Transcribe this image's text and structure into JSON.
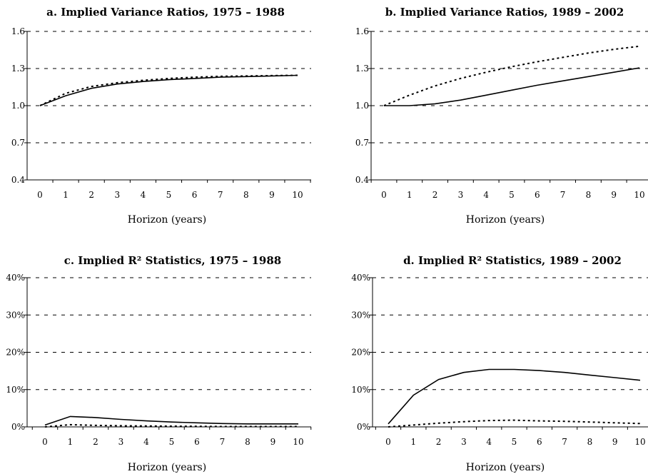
{
  "chart_data": [
    {
      "type": "line",
      "title": "a. Implied Variance Ratios, 1975 – 1988",
      "xlabel": "Horizon (years)",
      "ylabel": "",
      "x": [
        0,
        1,
        2,
        3,
        4,
        5,
        6,
        7,
        8,
        9,
        10
      ],
      "x_tick_labels": [
        "0",
        "1",
        "2",
        "3",
        "4",
        "5",
        "6",
        "7",
        "8",
        "9",
        "10"
      ],
      "xlim": [
        0,
        10
      ],
      "ylim": [
        0.4,
        1.6
      ],
      "y_ticks": [
        0.4,
        0.7,
        1.0,
        1.3,
        1.6
      ],
      "y_tick_labels": [
        "0.4",
        "0.7",
        "1.0",
        "1.3",
        "1.6"
      ],
      "grid": true,
      "series": [
        {
          "style": "solid",
          "values": [
            1.0,
            1.08,
            1.14,
            1.175,
            1.195,
            1.21,
            1.22,
            1.23,
            1.235,
            1.24,
            1.245
          ]
        },
        {
          "style": "dotted",
          "values": [
            1.0,
            1.1,
            1.155,
            1.185,
            1.205,
            1.22,
            1.23,
            1.237,
            1.24,
            1.243,
            1.245
          ]
        }
      ]
    },
    {
      "type": "line",
      "title": "b. Implied Variance Ratios, 1989 – 2002",
      "xlabel": "Horizon (years)",
      "ylabel": "",
      "x": [
        0,
        1,
        2,
        3,
        4,
        5,
        6,
        7,
        8,
        9,
        10
      ],
      "x_tick_labels": [
        "0",
        "1",
        "2",
        "3",
        "4",
        "5",
        "6",
        "7",
        "8",
        "9",
        "10"
      ],
      "xlim": [
        0,
        10
      ],
      "ylim": [
        0.4,
        1.6
      ],
      "y_ticks": [
        0.4,
        0.7,
        1.0,
        1.3,
        1.6
      ],
      "y_tick_labels": [
        "0.4",
        "0.7",
        "1.0",
        "1.3",
        "1.6"
      ],
      "grid": true,
      "series": [
        {
          "style": "solid",
          "values": [
            1.0,
            1.0,
            1.015,
            1.045,
            1.085,
            1.125,
            1.165,
            1.2,
            1.235,
            1.27,
            1.305
          ]
        },
        {
          "style": "dotted",
          "values": [
            1.0,
            1.085,
            1.16,
            1.22,
            1.27,
            1.315,
            1.355,
            1.39,
            1.425,
            1.455,
            1.48
          ]
        }
      ]
    },
    {
      "type": "line",
      "title": "c. Implied R² Statistics, 1975 – 1988",
      "xlabel": "Horizon (years)",
      "ylabel": "",
      "x": [
        0,
        1,
        2,
        3,
        4,
        5,
        6,
        7,
        8,
        9,
        10
      ],
      "x_tick_labels": [
        "0",
        "1",
        "2",
        "3",
        "4",
        "5",
        "6",
        "7",
        "8",
        "9",
        "10"
      ],
      "xlim": [
        0,
        10
      ],
      "ylim": [
        0,
        40
      ],
      "y_ticks": [
        0,
        10,
        20,
        30,
        40
      ],
      "y_tick_labels": [
        "0%",
        "10%",
        "20%",
        "30%",
        "40%"
      ],
      "grid": true,
      "series": [
        {
          "style": "solid",
          "values": [
            0.5,
            2.8,
            2.5,
            2.0,
            1.6,
            1.3,
            1.1,
            0.9,
            0.8,
            0.8,
            0.8
          ]
        },
        {
          "style": "dotted",
          "values": [
            0.0,
            0.6,
            0.4,
            0.3,
            0.25,
            0.2,
            0.15,
            0.1,
            0.1,
            0.1,
            0.1
          ]
        }
      ]
    },
    {
      "type": "line",
      "title": "d. Implied R² Statistics, 1989 – 2002",
      "xlabel": "Horizon (years)",
      "ylabel": "",
      "x": [
        0,
        1,
        2,
        3,
        4,
        5,
        6,
        7,
        8,
        9,
        10
      ],
      "x_tick_labels": [
        "0",
        "1",
        "2",
        "3",
        "4",
        "5",
        "6",
        "7",
        "8",
        "9",
        "10"
      ],
      "xlim": [
        0,
        10
      ],
      "ylim": [
        0,
        40
      ],
      "y_ticks": [
        0,
        10,
        20,
        30,
        40
      ],
      "y_tick_labels": [
        "0%",
        "10%",
        "20%",
        "30%",
        "40%"
      ],
      "grid": true,
      "series": [
        {
          "style": "solid",
          "values": [
            0.8,
            8.5,
            12.7,
            14.6,
            15.4,
            15.4,
            15.1,
            14.6,
            13.9,
            13.2,
            12.5
          ]
        },
        {
          "style": "dotted",
          "values": [
            0.0,
            0.5,
            1.0,
            1.4,
            1.7,
            1.8,
            1.6,
            1.5,
            1.3,
            1.1,
            0.9
          ]
        }
      ]
    }
  ]
}
